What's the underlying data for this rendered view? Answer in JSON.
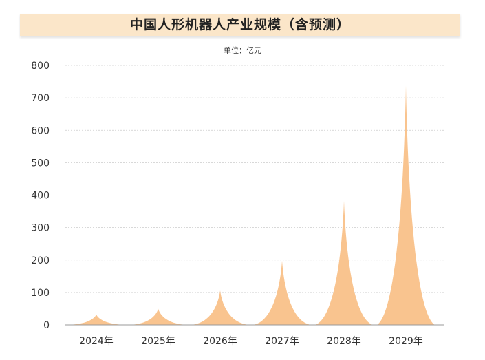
{
  "title": "中国人形机器人产业规模（含预测）",
  "unit": "单位：亿元",
  "colors": {
    "spike": "#f9c48f",
    "band": "#fbe6c9",
    "grid": "#cccccc"
  },
  "chart_data": {
    "type": "area",
    "categories": [
      "2024年",
      "2025年",
      "2026年",
      "2027年",
      "2028年",
      "2029年"
    ],
    "values": [
      32,
      50,
      106,
      198,
      382,
      738
    ],
    "ylim": [
      0,
      800
    ],
    "yticks": [
      0,
      100,
      200,
      300,
      400,
      500,
      600,
      700,
      800
    ],
    "grid": true,
    "legend": "none"
  }
}
